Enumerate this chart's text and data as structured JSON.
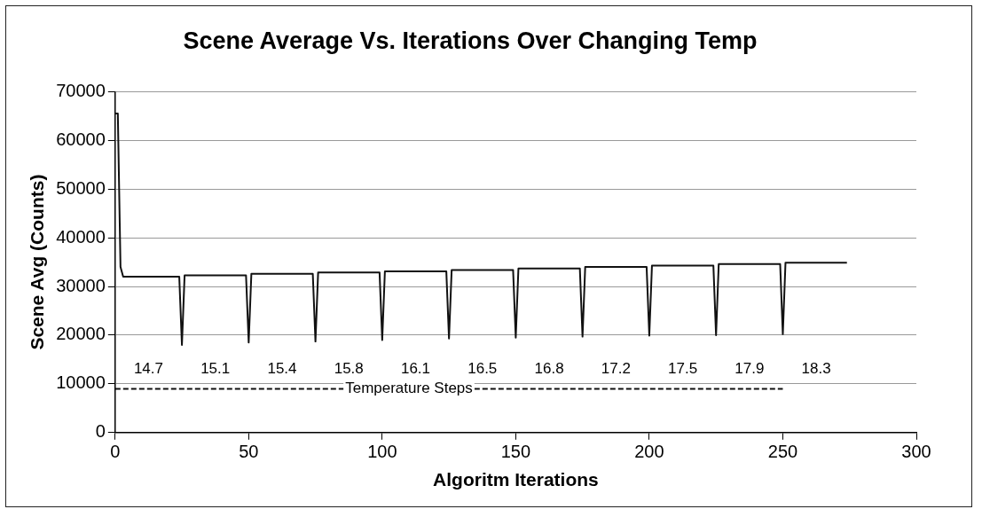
{
  "chart_data": {
    "type": "line",
    "title": "Scene Average Vs. Iterations Over Changing Temp",
    "xlabel": "Algoritm Iterations",
    "ylabel": "Scene Avg (Counts)",
    "xlim": [
      0,
      300
    ],
    "xticks": [
      0,
      50,
      100,
      150,
      200,
      250,
      300
    ],
    "ylim": [
      0,
      70000
    ],
    "yticks": [
      0,
      10000,
      20000,
      30000,
      40000,
      50000,
      60000,
      70000
    ],
    "grid": "y",
    "legend": false,
    "marker": "none",
    "series": [
      {
        "color": "#111111",
        "line_style": "solid",
        "x": [
          0,
          1,
          2,
          3,
          24,
          25,
          26,
          49,
          50,
          51,
          74,
          75,
          76,
          99,
          100,
          101,
          124,
          125,
          126,
          149,
          150,
          151,
          174,
          175,
          176,
          199,
          200,
          201,
          224,
          225,
          226,
          249,
          250,
          251,
          274
        ],
        "values": [
          65500,
          65500,
          34000,
          32000,
          32000,
          18000,
          32300,
          32300,
          18500,
          32600,
          32600,
          18700,
          32900,
          32900,
          19000,
          33100,
          33100,
          19300,
          33400,
          33400,
          19500,
          33700,
          33700,
          19700,
          34000,
          34000,
          19900,
          34300,
          34300,
          20000,
          34600,
          34600,
          20200,
          34900,
          34900
        ]
      },
      {
        "color": "#111111",
        "line_style": "dashed",
        "x": [
          0,
          250
        ],
        "values": [
          9000,
          9000
        ]
      }
    ],
    "annotations": [
      {
        "text": "14.7",
        "x": 12.5,
        "y": 13000
      },
      {
        "text": "15.1",
        "x": 37.5,
        "y": 13000
      },
      {
        "text": "15.4",
        "x": 62.5,
        "y": 13000
      },
      {
        "text": "15.8",
        "x": 87.5,
        "y": 13000
      },
      {
        "text": "16.1",
        "x": 112.5,
        "y": 13000
      },
      {
        "text": "16.5",
        "x": 137.5,
        "y": 13000
      },
      {
        "text": "16.8",
        "x": 162.5,
        "y": 13000
      },
      {
        "text": "17.2",
        "x": 187.5,
        "y": 13000
      },
      {
        "text": "17.5",
        "x": 212.5,
        "y": 13000
      },
      {
        "text": "17.9",
        "x": 237.5,
        "y": 13000
      },
      {
        "text": "18.3",
        "x": 262.5,
        "y": 13000
      },
      {
        "text": "Temperature Steps",
        "x": 110,
        "y": 9000
      }
    ]
  }
}
